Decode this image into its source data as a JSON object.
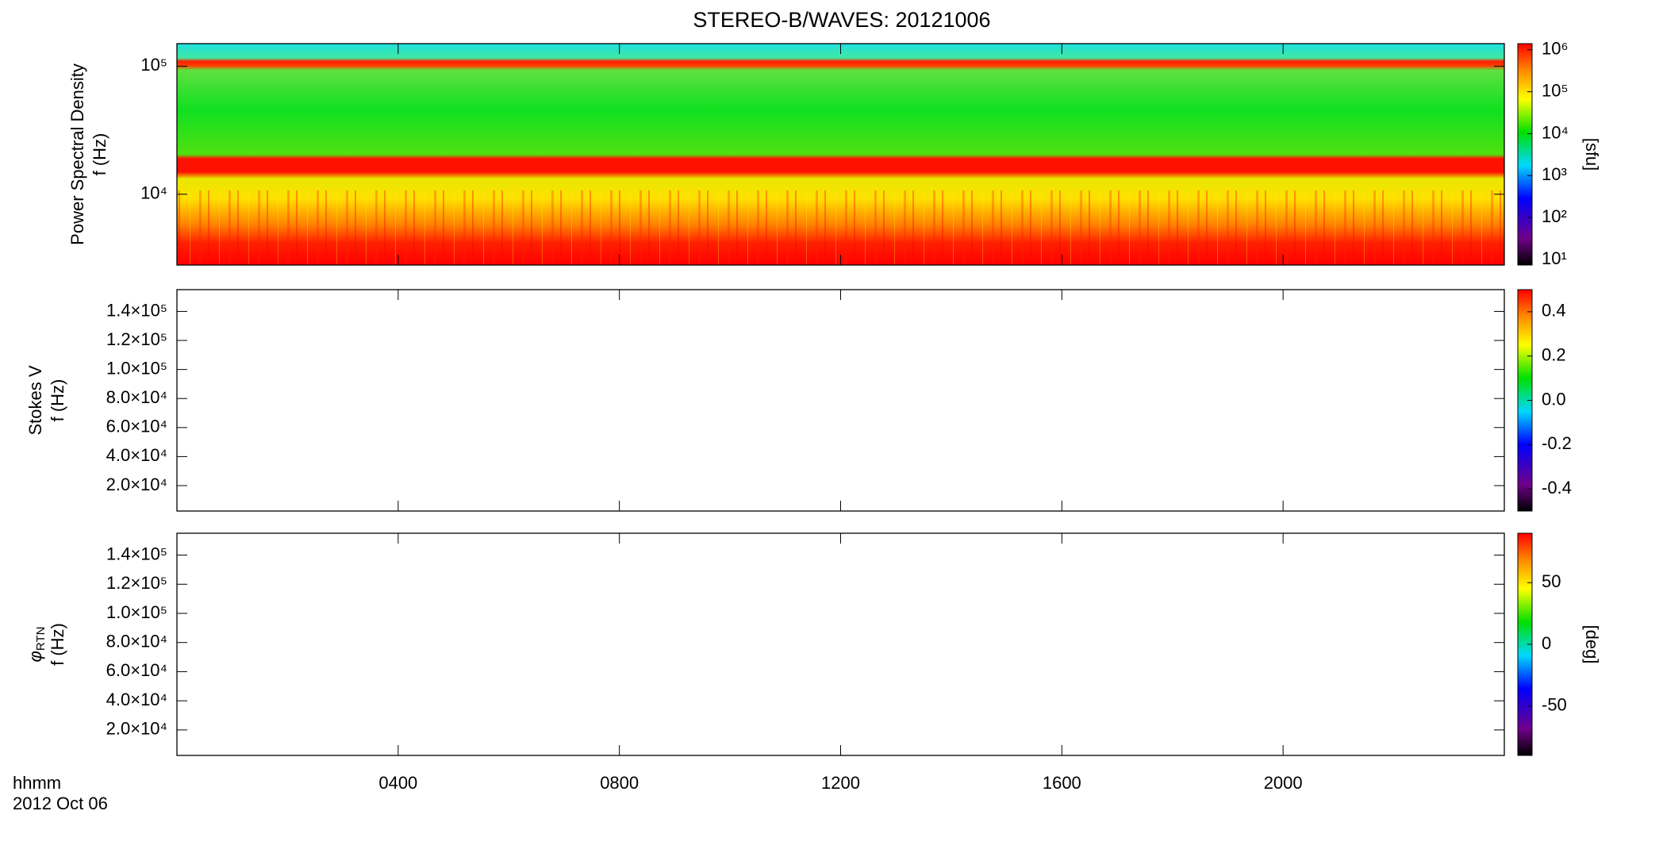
{
  "title": "STEREO-B/WAVES: 20121006",
  "x_axis": {
    "xlim": [
      0,
      24
    ],
    "xticks": [
      {
        "value": 4,
        "label": "0400"
      },
      {
        "value": 8,
        "label": "0800"
      },
      {
        "value": 12,
        "label": "1200"
      },
      {
        "value": 16,
        "label": "1600"
      },
      {
        "value": 20,
        "label": "2000"
      }
    ],
    "xlabel": "hhmm",
    "date": "2012 Oct 06"
  },
  "chart_data": [
    {
      "type": "spectrogram",
      "ylabel": [
        "Power Spectral Density",
        "f (Hz)"
      ],
      "ylog": true,
      "ylim": [
        2800,
        150000
      ],
      "yticks": [
        {
          "value": 10000,
          "label": "10⁴"
        },
        {
          "value": 100000,
          "label": "10⁵"
        }
      ],
      "colorbar": {
        "log": true,
        "lim": [
          7.4,
          1400000
        ],
        "ticks": [
          {
            "value": 10,
            "label": "10¹"
          },
          {
            "value": 100,
            "label": "10²"
          },
          {
            "value": 1000,
            "label": "10³"
          },
          {
            "value": 10000,
            "label": "10⁴"
          },
          {
            "value": 100000,
            "label": "10⁵"
          },
          {
            "value": 1000000,
            "label": "10⁶"
          }
        ],
        "label": "[sfu]"
      }
    },
    {
      "type": "spectrogram",
      "ylabel": [
        "Stokes V",
        "f (Hz)"
      ],
      "ylog": false,
      "ylim": [
        2500,
        155000
      ],
      "yticks": [
        {
          "value": 20000,
          "label": "2.0×10⁴"
        },
        {
          "value": 40000,
          "label": "4.0×10⁴"
        },
        {
          "value": 60000,
          "label": "6.0×10⁴"
        },
        {
          "value": 80000,
          "label": "8.0×10⁴"
        },
        {
          "value": 100000,
          "label": "1.0×10⁵"
        },
        {
          "value": 120000,
          "label": "1.2×10⁵"
        },
        {
          "value": 140000,
          "label": "1.4×10⁵"
        }
      ],
      "colorbar": {
        "log": false,
        "lim": [
          -0.5,
          0.5
        ],
        "ticks": [
          -0.4,
          -0.2,
          {
            "value": 0,
            "label": "0.0"
          },
          0.2,
          0.4
        ]
      }
    },
    {
      "type": "spectrogram",
      "ylabel_symbol": "φ",
      "ylabel_symbol_sub": "RTN",
      "ylabel": [
        "f (Hz)"
      ],
      "ylog": false,
      "ylim": [
        2500,
        155000
      ],
      "yticks": [
        {
          "value": 20000,
          "label": "2.0×10⁴"
        },
        {
          "value": 40000,
          "label": "4.0×10⁴"
        },
        {
          "value": 60000,
          "label": "6.0×10⁴"
        },
        {
          "value": 80000,
          "label": "8.0×10⁴"
        },
        {
          "value": 100000,
          "label": "1.0×10⁵"
        },
        {
          "value": 120000,
          "label": "1.2×10⁵"
        },
        {
          "value": 140000,
          "label": "1.4×10⁵"
        }
      ],
      "colorbar": {
        "log": false,
        "lim": [
          -90,
          90
        ],
        "ticks": [
          -50,
          0,
          50
        ],
        "label": "[deg]"
      }
    }
  ]
}
